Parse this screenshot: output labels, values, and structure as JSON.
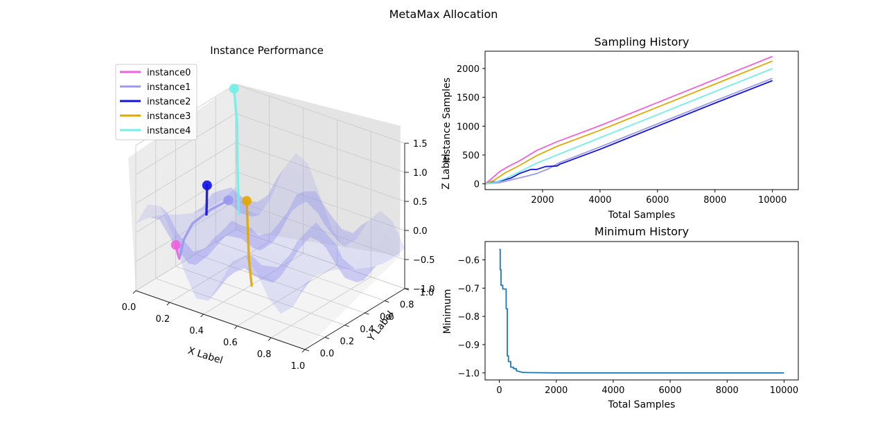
{
  "figure": {
    "suptitle": "MetaMax Allocation"
  },
  "chart_data": [
    {
      "type": "line",
      "subtype": "3d-surface-with-trajectories",
      "title": "Instance Performance",
      "xlabel": "X Label",
      "ylabel": "Y Label",
      "zlabel": "Z Label",
      "xlim": [
        0.0,
        1.0
      ],
      "ylim": [
        0.0,
        1.0
      ],
      "zlim": [
        -1.0,
        1.5
      ],
      "x_ticks": [
        "0.0",
        "0.2",
        "0.4",
        "0.6",
        "0.8",
        "1.0"
      ],
      "y_ticks": [
        "0.0",
        "0.2",
        "0.4",
        "0.6",
        "0.8",
        "1.0"
      ],
      "z_ticks": [
        "−1.0",
        "−0.5",
        "0.0",
        "0.5",
        "1.0",
        "1.5"
      ],
      "grid": true,
      "legend_position": "top-left",
      "surface_color": "#8a8af0",
      "series": [
        {
          "name": "instance0",
          "color": "#f060e0",
          "x": [
            0.03,
            0.05,
            0.08
          ],
          "y": [
            0.35,
            0.33,
            0.3
          ],
          "z": [
            -0.55,
            -0.62,
            -0.68
          ]
        },
        {
          "name": "instance1",
          "color": "#9a98f0",
          "x": [
            0.3,
            0.22,
            0.14,
            0.1,
            0.09
          ],
          "y": [
            0.42,
            0.38,
            0.33,
            0.31,
            0.29
          ],
          "z": [
            0.42,
            0.22,
            -0.05,
            -0.35,
            -0.62
          ]
        },
        {
          "name": "instance2",
          "color": "#1010e8",
          "x": [
            0.02,
            0.03,
            0.04
          ],
          "y": [
            0.68,
            0.66,
            0.64
          ],
          "z": [
            0.12,
            -0.15,
            -0.32
          ]
        },
        {
          "name": "instance3",
          "color": "#e0a800",
          "x": [
            0.42,
            0.45,
            0.48,
            0.52
          ],
          "y": [
            0.4,
            0.36,
            0.32,
            0.28
          ],
          "z": [
            0.55,
            0.1,
            -0.3,
            -0.68
          ]
        },
        {
          "name": "instance4",
          "color": "#70f0e8",
          "x": [
            0.02,
            0.08,
            0.14,
            0.22
          ],
          "y": [
            0.95,
            0.88,
            0.78,
            0.66
          ],
          "z": [
            1.5,
            1.02,
            0.6,
            -0.15
          ]
        }
      ]
    },
    {
      "type": "line",
      "title": "Sampling History",
      "xlabel": "Total Samples",
      "ylabel": "Instance Samples",
      "xlim": [
        0,
        10900
      ],
      "ylim": [
        -100,
        2300
      ],
      "x_ticks": [
        2000,
        4000,
        6000,
        8000,
        10000
      ],
      "y_ticks": [
        0,
        500,
        1000,
        1500,
        2000
      ],
      "grid": false,
      "series": [
        {
          "name": "instance0",
          "color": "#f060e0",
          "x": [
            0,
            200,
            500,
            800,
            1200,
            1600,
            1800,
            2500,
            4000,
            6000,
            8000,
            10000
          ],
          "y": [
            0,
            80,
            210,
            300,
            400,
            520,
            580,
            730,
            1010,
            1410,
            1810,
            2210
          ]
        },
        {
          "name": "instance1",
          "color": "#9a98f0",
          "x": [
            0,
            500,
            1000,
            1500,
            1800,
            2200,
            2600,
            4000,
            6000,
            8000,
            10000
          ],
          "y": [
            0,
            20,
            80,
            140,
            180,
            260,
            370,
            640,
            1040,
            1440,
            1830
          ]
        },
        {
          "name": "instance2",
          "color": "#1010e8",
          "x": [
            0,
            300,
            600,
            900,
            1200,
            1600,
            1800,
            2100,
            2500,
            2600,
            4000,
            6000,
            8000,
            10000
          ],
          "y": [
            0,
            30,
            60,
            100,
            180,
            250,
            250,
            300,
            310,
            340,
            600,
            1000,
            1400,
            1790
          ]
        },
        {
          "name": "instance3",
          "color": "#e0a800",
          "x": [
            0,
            300,
            700,
            1200,
            1800,
            2500,
            4000,
            6000,
            8000,
            10000
          ],
          "y": [
            0,
            60,
            190,
            320,
            490,
            650,
            930,
            1330,
            1730,
            2130
          ]
        },
        {
          "name": "instance4",
          "color": "#70f0e8",
          "x": [
            0,
            300,
            700,
            1200,
            1800,
            2500,
            4000,
            6000,
            8000,
            10000
          ],
          "y": [
            0,
            20,
            90,
            210,
            360,
            500,
            800,
            1200,
            1600,
            2000
          ]
        }
      ]
    },
    {
      "type": "line",
      "title": "Minimum History",
      "xlabel": "Total Samples",
      "ylabel": "Minimum",
      "xlim": [
        -500,
        10500
      ],
      "ylim": [
        -1.025,
        -0.535
      ],
      "x_ticks": [
        0,
        2000,
        4000,
        6000,
        8000,
        10000
      ],
      "y_ticks": [
        -0.6,
        -0.7,
        -0.8,
        -0.9,
        -1.0
      ],
      "grid": false,
      "series": [
        {
          "name": "",
          "color": "#1f77b4",
          "x": [
            0,
            30,
            30,
            60,
            60,
            120,
            120,
            240,
            240,
            280,
            280,
            320,
            320,
            400,
            400,
            500,
            500,
            600,
            600,
            700,
            800,
            1000,
            2000,
            10000
          ],
          "y": [
            -0.563,
            -0.563,
            -0.635,
            -0.635,
            -0.69,
            -0.69,
            -0.703,
            -0.703,
            -0.773,
            -0.773,
            -0.94,
            -0.94,
            -0.96,
            -0.96,
            -0.98,
            -0.98,
            -0.985,
            -0.985,
            -0.993,
            -0.995,
            -0.998,
            -0.999,
            -1.0,
            -1.0
          ]
        }
      ]
    }
  ]
}
